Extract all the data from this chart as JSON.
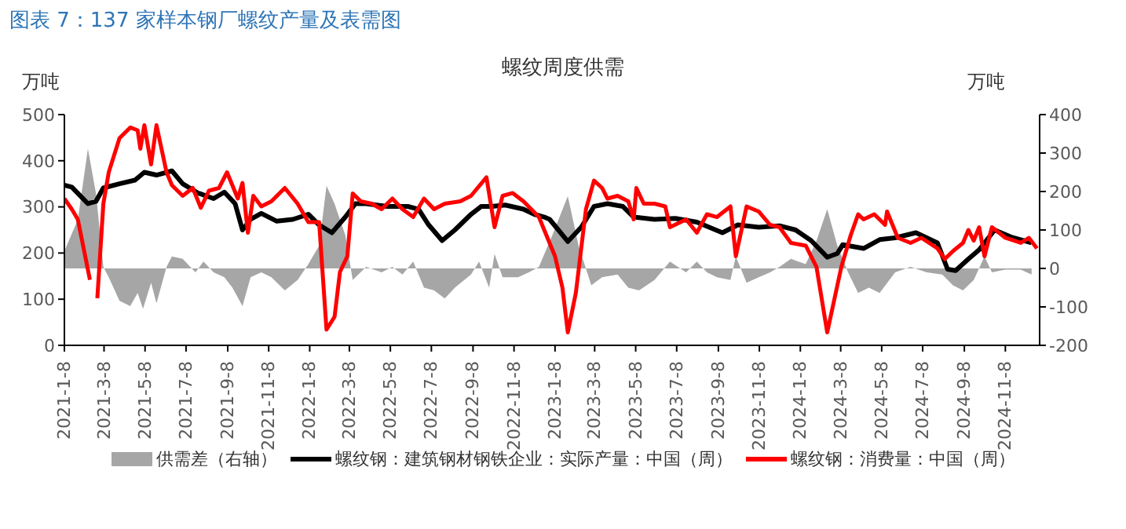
{
  "chart_data": {
    "type": "line",
    "title": "图表 7：137 家样本钢厂螺纹产量及表需图",
    "subtitle": "螺纹周度供需",
    "ylabel": "万吨",
    "y2label": "万吨",
    "xlim": [
      "2021-01-08",
      "2024-12-29"
    ],
    "xticks": [
      {
        "value": "2021-01-08",
        "label": "2021-1-8"
      },
      {
        "value": "2021-03-08",
        "label": "2021-3-8"
      },
      {
        "value": "2021-05-08",
        "label": "2021-5-8"
      },
      {
        "value": "2021-07-08",
        "label": "2021-7-8"
      },
      {
        "value": "2021-09-08",
        "label": "2021-9-8"
      },
      {
        "value": "2021-11-08",
        "label": "2021-11-8"
      },
      {
        "value": "2022-01-08",
        "label": "2022-1-8"
      },
      {
        "value": "2022-03-08",
        "label": "2022-3-8"
      },
      {
        "value": "2022-05-08",
        "label": "2022-5-8"
      },
      {
        "value": "2022-07-08",
        "label": "2022-7-8"
      },
      {
        "value": "2022-09-08",
        "label": "2022-9-8"
      },
      {
        "value": "2022-11-08",
        "label": "2022-11-8"
      },
      {
        "value": "2023-01-08",
        "label": "2023-1-8"
      },
      {
        "value": "2023-03-08",
        "label": "2023-3-8"
      },
      {
        "value": "2023-05-08",
        "label": "2023-5-8"
      },
      {
        "value": "2023-07-08",
        "label": "2023-7-8"
      },
      {
        "value": "2023-09-08",
        "label": "2023-9-8"
      },
      {
        "value": "2023-11-08",
        "label": "2023-11-8"
      },
      {
        "value": "2024-01-08",
        "label": "2024-1-8"
      },
      {
        "value": "2024-03-08",
        "label": "2024-3-8"
      },
      {
        "value": "2024-05-08",
        "label": "2024-5-8"
      },
      {
        "value": "2024-07-08",
        "label": "2024-7-8"
      },
      {
        "value": "2024-09-08",
        "label": "2024-9-8"
      },
      {
        "value": "2024-11-08",
        "label": "2024-11-8"
      }
    ],
    "ylim": [
      0,
      500
    ],
    "yticks": [
      0,
      100,
      200,
      300,
      400,
      500
    ],
    "y2lim": [
      -200,
      400
    ],
    "y2ticks": [
      -200,
      -100,
      0,
      100,
      200,
      300,
      400
    ],
    "legend": "bottom",
    "marker": "none",
    "series": [
      {
        "name": "供需差（右轴）",
        "type": "area",
        "axis": "y2",
        "color": "#a6a6a6",
        "x": [
          "2021-01-08",
          "2021-01-28",
          "2021-02-12",
          "2021-02-24",
          "2021-03-07",
          "2021-03-15",
          "2021-03-31",
          "2021-04-16",
          "2021-04-27",
          "2021-05-05",
          "2021-05-17",
          "2021-05-25",
          "2021-06-09",
          "2021-06-17",
          "2021-07-03",
          "2021-07-22",
          "2021-08-03",
          "2021-08-18",
          "2021-09-03",
          "2021-09-15",
          "2021-09-30",
          "2021-10-12",
          "2021-10-28",
          "2021-11-12",
          "2021-12-02",
          "2021-12-21",
          "2022-01-06",
          "2022-01-22",
          "2022-02-02",
          "2022-02-14",
          "2022-03-02",
          "2022-03-13",
          "2022-04-02",
          "2022-04-25",
          "2022-05-11",
          "2022-05-26",
          "2022-06-11",
          "2022-06-27",
          "2022-07-12",
          "2022-07-28",
          "2022-08-12",
          "2022-09-05",
          "2022-09-17",
          "2022-10-02",
          "2022-10-10",
          "2022-10-22",
          "2022-11-14",
          "2022-11-30",
          "2022-12-15",
          "2023-01-04",
          "2023-01-27",
          "2023-02-12",
          "2023-03-03",
          "2023-03-19",
          "2023-04-11",
          "2023-04-27",
          "2023-05-13",
          "2023-06-05",
          "2023-06-28",
          "2023-07-22",
          "2023-08-07",
          "2023-08-22",
          "2023-09-06",
          "2023-09-26",
          "2023-10-04",
          "2023-10-20",
          "2023-11-07",
          "2023-11-24",
          "2023-12-08",
          "2023-12-25",
          "2024-01-16",
          "2024-02-01",
          "2024-02-17",
          "2024-03-03",
          "2024-03-19",
          "2024-04-03",
          "2024-04-19",
          "2024-05-05",
          "2024-05-28",
          "2024-06-20",
          "2024-07-14",
          "2024-08-06",
          "2024-08-22",
          "2024-09-06",
          "2024-09-22",
          "2024-10-08",
          "2024-10-19",
          "2024-11-08",
          "2024-12-01",
          "2024-12-17"
        ],
        "values": [
          45,
          127,
          311,
          195,
          4,
          -23,
          -84,
          -98,
          -64,
          -105,
          -37,
          -91,
          4,
          31,
          25,
          -10,
          18,
          -10,
          -23,
          -50,
          -98,
          -23,
          -10,
          -23,
          -57,
          -30,
          11,
          59,
          215,
          168,
          86,
          -30,
          4,
          -10,
          4,
          -16,
          18,
          -50,
          -57,
          -78,
          -50,
          -16,
          18,
          -50,
          38,
          -23,
          -23,
          -10,
          4,
          86,
          188,
          59,
          -44,
          -23,
          -16,
          -50,
          -57,
          -30,
          18,
          -10,
          18,
          -10,
          -23,
          -30,
          31,
          -37,
          -23,
          -10,
          4,
          25,
          11,
          72,
          154,
          59,
          -10,
          -64,
          -50,
          -64,
          -10,
          4,
          -10,
          -16,
          -44,
          -57,
          -30,
          31,
          -10,
          -3,
          -3,
          -16
        ]
      },
      {
        "name": "螺纹钢：建筑钢材钢铁企业：实际产量：中国（周）",
        "color": "#000000",
        "x": [
          "2021-01-08",
          "2021-01-19",
          "2021-02-12",
          "2021-02-24",
          "2021-03-07",
          "2021-03-31",
          "2021-04-23",
          "2021-05-07",
          "2021-05-25",
          "2021-06-17",
          "2021-07-03",
          "2021-07-26",
          "2021-08-18",
          "2021-09-03",
          "2021-09-19",
          "2021-09-30",
          "2021-10-12",
          "2021-10-28",
          "2021-11-20",
          "2021-12-14",
          "2022-01-06",
          "2022-01-22",
          "2022-02-10",
          "2022-03-02",
          "2022-03-17",
          "2022-04-02",
          "2022-05-03",
          "2022-06-03",
          "2022-06-19",
          "2022-07-04",
          "2022-07-24",
          "2022-08-12",
          "2022-09-05",
          "2022-09-20",
          "2022-10-06",
          "2022-10-26",
          "2022-11-22",
          "2022-12-08",
          "2022-12-23",
          "2022-12-31",
          "2023-01-27",
          "2023-02-16",
          "2023-03-07",
          "2023-03-27",
          "2023-04-19",
          "2023-05-05",
          "2023-06-05",
          "2023-07-06",
          "2023-08-07",
          "2023-09-14",
          "2023-10-07",
          "2023-11-07",
          "2023-12-08",
          "2024-01-01",
          "2024-01-24",
          "2024-02-17",
          "2024-03-03",
          "2024-03-11",
          "2024-04-11",
          "2024-05-05",
          "2024-05-28",
          "2024-06-28",
          "2024-07-30",
          "2024-08-14",
          "2024-08-26",
          "2024-09-14",
          "2024-09-30",
          "2024-10-23",
          "2024-11-16",
          "2024-12-17"
        ],
        "values": [
          347,
          343,
          307,
          312,
          341,
          350,
          358,
          375,
          369,
          378,
          350,
          330,
          318,
          332,
          307,
          250,
          273,
          286,
          269,
          273,
          284,
          261,
          244,
          278,
          307,
          307,
          301,
          301,
          295,
          261,
          227,
          250,
          284,
          301,
          301,
          304,
          295,
          284,
          278,
          273,
          225,
          256,
          301,
          307,
          301,
          278,
          273,
          275,
          267,
          244,
          261,
          256,
          259,
          250,
          227,
          191,
          199,
          218,
          210,
          229,
          233,
          244,
          222,
          165,
          162,
          187,
          207,
          250,
          235,
          222
        ]
      },
      {
        "name": "螺纹钢：消费量：中国（周）",
        "color": "#ff0000",
        "x": [
          "2021-01-08",
          "2021-01-19",
          "2021-01-28",
          "2021-02-08",
          "2021-02-15",
          "2021-02-19",
          "2021-02-26",
          "2021-03-07",
          "2021-03-15",
          "2021-03-31",
          "2021-04-16",
          "2021-04-27",
          "2021-05-01",
          "2021-05-07",
          "2021-05-17",
          "2021-05-25",
          "2021-06-09",
          "2021-06-17",
          "2021-07-03",
          "2021-07-18",
          "2021-07-30",
          "2021-08-11",
          "2021-08-26",
          "2021-09-07",
          "2021-09-23",
          "2021-09-30",
          "2021-10-08",
          "2021-10-16",
          "2021-10-28",
          "2021-11-12",
          "2021-12-02",
          "2021-12-21",
          "2022-01-06",
          "2022-01-22",
          "2022-02-02",
          "2022-02-14",
          "2022-02-22",
          "2022-03-05",
          "2022-03-13",
          "2022-03-25",
          "2022-04-10",
          "2022-04-25",
          "2022-05-11",
          "2022-05-26",
          "2022-06-11",
          "2022-06-27",
          "2022-07-12",
          "2022-07-28",
          "2022-08-20",
          "2022-09-05",
          "2022-09-28",
          "2022-10-10",
          "2022-10-22",
          "2022-11-06",
          "2022-11-22",
          "2022-12-15",
          "2023-01-08",
          "2023-01-19",
          "2023-01-27",
          "2023-02-08",
          "2023-02-23",
          "2023-03-07",
          "2023-03-19",
          "2023-03-27",
          "2023-04-11",
          "2023-04-27",
          "2023-05-05",
          "2023-05-09",
          "2023-05-20",
          "2023-06-05",
          "2023-06-21",
          "2023-06-28",
          "2023-07-22",
          "2023-08-07",
          "2023-08-22",
          "2023-09-06",
          "2023-09-26",
          "2023-10-04",
          "2023-10-20",
          "2023-11-07",
          "2023-11-24",
          "2023-12-08",
          "2023-12-25",
          "2024-01-16",
          "2024-02-01",
          "2024-02-17",
          "2024-03-09",
          "2024-03-23",
          "2024-04-03",
          "2024-04-11",
          "2024-04-27",
          "2024-05-13",
          "2024-05-16",
          "2024-06-01",
          "2024-06-20",
          "2024-07-06",
          "2024-07-30",
          "2024-08-10",
          "2024-08-22",
          "2024-09-06",
          "2024-09-14",
          "2024-09-22",
          "2024-09-30",
          "2024-10-08",
          "2024-10-19",
          "2024-11-08",
          "2024-12-01",
          "2024-12-13",
          "2024-12-25"
        ],
        "values": [
          318,
          295,
          273,
          193,
          142,
          null,
          102,
          307,
          375,
          449,
          472,
          466,
          426,
          477,
          392,
          477,
          375,
          347,
          324,
          341,
          298,
          335,
          341,
          375,
          318,
          352,
          244,
          324,
          301,
          312,
          341,
          307,
          267,
          267,
          34,
          62,
          159,
          193,
          329,
          312,
          307,
          295,
          318,
          295,
          278,
          318,
          295,
          307,
          312,
          324,
          364,
          256,
          324,
          330,
          312,
          278,
          193,
          125,
          28,
          114,
          295,
          357,
          341,
          318,
          324,
          312,
          273,
          341,
          307,
          307,
          301,
          256,
          273,
          244,
          284,
          278,
          301,
          193,
          301,
          290,
          261,
          256,
          222,
          216,
          170,
          28,
          170,
          239,
          284,
          273,
          284,
          261,
          290,
          233,
          222,
          233,
          210,
          187,
          204,
          222,
          250,
          227,
          256,
          193,
          256,
          233,
          222,
          233,
          210
        ]
      }
    ]
  }
}
